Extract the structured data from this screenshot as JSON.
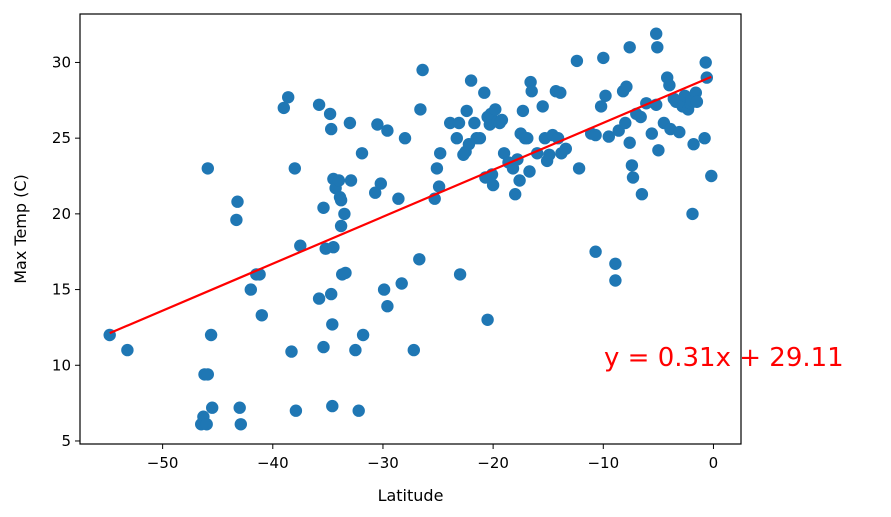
{
  "chart_data": {
    "type": "scatter",
    "xlabel": "Latitude",
    "ylabel": "Max Temp (C)",
    "xlim": [
      -57.5,
      2.5
    ],
    "ylim": [
      4.8,
      33.2
    ],
    "xticks": [
      -50,
      -40,
      -30,
      -20,
      -10,
      0
    ],
    "yticks": [
      5,
      10,
      15,
      20,
      25,
      30
    ],
    "xtick_labels": [
      "−50",
      "−40",
      "−30",
      "−20",
      "−10",
      "0"
    ],
    "ytick_labels": [
      "5",
      "10",
      "15",
      "20",
      "25",
      "30"
    ],
    "grid": false,
    "point_color": "#1f77b4",
    "line_color": "#ff0000",
    "regression": {
      "slope": 0.31,
      "intercept": 29.11,
      "x_start": -54.8,
      "x_end": -0.2,
      "label": "y = 0.31x + 29.11"
    },
    "points": [
      [
        -54.8,
        12.0
      ],
      [
        -53.2,
        11.0
      ],
      [
        -46.5,
        6.1
      ],
      [
        -46.2,
        9.4
      ],
      [
        -46.3,
        6.6
      ],
      [
        -46.0,
        6.1
      ],
      [
        -45.9,
        9.4
      ],
      [
        -45.6,
        12.0
      ],
      [
        -45.5,
        7.2
      ],
      [
        -45.9,
        23.0
      ],
      [
        -43.2,
        20.8
      ],
      [
        -43.3,
        19.6
      ],
      [
        -43.0,
        7.2
      ],
      [
        -42.9,
        6.1
      ],
      [
        -42.0,
        15.0
      ],
      [
        -41.5,
        16.0
      ],
      [
        -41.2,
        16.0
      ],
      [
        -41.0,
        13.3
      ],
      [
        -39.0,
        27.0
      ],
      [
        -38.6,
        27.7
      ],
      [
        -38.3,
        10.9
      ],
      [
        -38.0,
        23.0
      ],
      [
        -37.9,
        7.0
      ],
      [
        -37.5,
        17.9
      ],
      [
        -35.8,
        27.2
      ],
      [
        -35.8,
        14.4
      ],
      [
        -35.4,
        20.4
      ],
      [
        -35.4,
        11.2
      ],
      [
        -35.2,
        17.7
      ],
      [
        -34.8,
        26.6
      ],
      [
        -34.7,
        25.6
      ],
      [
        -34.7,
        14.7
      ],
      [
        -34.6,
        12.7
      ],
      [
        -34.6,
        7.3
      ],
      [
        -34.5,
        22.3
      ],
      [
        -34.3,
        21.7
      ],
      [
        -34.5,
        17.8
      ],
      [
        -34.0,
        22.2
      ],
      [
        -33.9,
        21.1
      ],
      [
        -33.8,
        19.2
      ],
      [
        -33.8,
        20.9
      ],
      [
        -33.7,
        16.0
      ],
      [
        -33.4,
        16.1
      ],
      [
        -33.5,
        20.0
      ],
      [
        -33.0,
        26.0
      ],
      [
        -32.9,
        22.2
      ],
      [
        -32.5,
        11.0
      ],
      [
        -32.2,
        7.0
      ],
      [
        -31.9,
        24.0
      ],
      [
        -31.8,
        12.0
      ],
      [
        -30.7,
        21.4
      ],
      [
        -30.5,
        25.9
      ],
      [
        -30.2,
        22.0
      ],
      [
        -29.9,
        15.0
      ],
      [
        -29.6,
        25.5
      ],
      [
        -29.6,
        13.9
      ],
      [
        -28.6,
        21.0
      ],
      [
        -28.3,
        15.4
      ],
      [
        -28.0,
        25.0
      ],
      [
        -27.2,
        11.0
      ],
      [
        -26.7,
        17.0
      ],
      [
        -26.6,
        26.9
      ],
      [
        -26.4,
        29.5
      ],
      [
        -25.3,
        21.0
      ],
      [
        -25.1,
        23.0
      ],
      [
        -24.8,
        24.0
      ],
      [
        -24.9,
        21.8
      ],
      [
        -23.9,
        26.0
      ],
      [
        -23.3,
        25.0
      ],
      [
        -23.1,
        26.0
      ],
      [
        -23.0,
        16.0
      ],
      [
        -22.7,
        23.9
      ],
      [
        -22.5,
        24.1
      ],
      [
        -22.4,
        26.8
      ],
      [
        -22.2,
        24.6
      ],
      [
        -22.0,
        28.8
      ],
      [
        -21.7,
        26.0
      ],
      [
        -21.5,
        25.0
      ],
      [
        -21.2,
        25.0
      ],
      [
        -20.8,
        28.0
      ],
      [
        -20.7,
        22.4
      ],
      [
        -20.5,
        26.4
      ],
      [
        -20.3,
        25.9
      ],
      [
        -20.5,
        13.0
      ],
      [
        -20.2,
        26.6
      ],
      [
        -20.1,
        22.6
      ],
      [
        -20.0,
        21.9
      ],
      [
        -19.8,
        26.9
      ],
      [
        -19.6,
        26.1
      ],
      [
        -19.4,
        26.0
      ],
      [
        -19.2,
        26.2
      ],
      [
        -19.0,
        24.0
      ],
      [
        -18.6,
        23.4
      ],
      [
        -18.2,
        23.0
      ],
      [
        -18.0,
        21.3
      ],
      [
        -17.8,
        23.6
      ],
      [
        -17.5,
        25.3
      ],
      [
        -17.6,
        22.2
      ],
      [
        -17.3,
        26.8
      ],
      [
        -17.1,
        25.0
      ],
      [
        -16.9,
        25.0
      ],
      [
        -16.7,
        22.8
      ],
      [
        -16.6,
        28.7
      ],
      [
        -16.5,
        28.1
      ],
      [
        -16.0,
        24.0
      ],
      [
        -15.5,
        27.1
      ],
      [
        -15.3,
        25.0
      ],
      [
        -15.1,
        23.5
      ],
      [
        -14.9,
        23.9
      ],
      [
        -14.6,
        25.2
      ],
      [
        -14.3,
        28.1
      ],
      [
        -14.1,
        25.0
      ],
      [
        -13.9,
        28.0
      ],
      [
        -13.8,
        24.0
      ],
      [
        -13.4,
        24.3
      ],
      [
        -12.4,
        30.1
      ],
      [
        -12.2,
        23.0
      ],
      [
        -11.1,
        25.3
      ],
      [
        -10.7,
        25.2
      ],
      [
        -10.7,
        17.5
      ],
      [
        -10.2,
        27.1
      ],
      [
        -10.0,
        30.3
      ],
      [
        -9.8,
        27.8
      ],
      [
        -9.5,
        25.1
      ],
      [
        -8.9,
        16.7
      ],
      [
        -8.9,
        15.6
      ],
      [
        -8.6,
        25.5
      ],
      [
        -8.2,
        28.1
      ],
      [
        -8.0,
        26.0
      ],
      [
        -7.9,
        28.4
      ],
      [
        -7.6,
        24.7
      ],
      [
        -7.6,
        31.0
      ],
      [
        -7.4,
        23.2
      ],
      [
        -7.3,
        22.4
      ],
      [
        -7.0,
        26.6
      ],
      [
        -6.6,
        26.4
      ],
      [
        -6.5,
        21.3
      ],
      [
        -6.1,
        27.3
      ],
      [
        -5.6,
        25.3
      ],
      [
        -5.2,
        27.2
      ],
      [
        -5.2,
        31.9
      ],
      [
        -5.1,
        31.0
      ],
      [
        -5.0,
        24.2
      ],
      [
        -4.5,
        26.0
      ],
      [
        -4.2,
        29.0
      ],
      [
        -4.0,
        28.5
      ],
      [
        -3.9,
        25.6
      ],
      [
        -3.6,
        27.6
      ],
      [
        -3.4,
        27.4
      ],
      [
        -3.1,
        25.4
      ],
      [
        -2.8,
        27.1
      ],
      [
        -2.6,
        27.8
      ],
      [
        -2.3,
        26.9
      ],
      [
        -2.1,
        27.3
      ],
      [
        -2.0,
        27.5
      ],
      [
        -1.9,
        20.0
      ],
      [
        -1.8,
        24.6
      ],
      [
        -1.6,
        28.0
      ],
      [
        -1.5,
        27.4
      ],
      [
        -0.8,
        25.0
      ],
      [
        -0.7,
        30.0
      ],
      [
        -0.6,
        29.0
      ],
      [
        -0.2,
        22.5
      ]
    ]
  }
}
